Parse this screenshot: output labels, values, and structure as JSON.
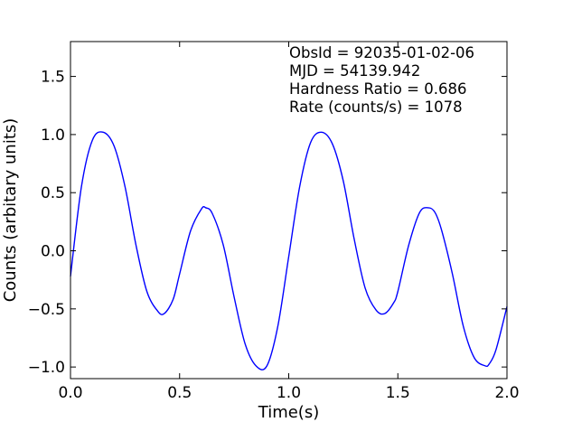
{
  "chart_data": {
    "type": "line",
    "xlabel": "Time(s)",
    "ylabel": "Counts (arbitary units)",
    "xlim": [
      0.0,
      2.0
    ],
    "ylim": [
      -1.1,
      1.8
    ],
    "x_ticks": [
      "0.0",
      "0.5",
      "1.0",
      "1.5",
      "2.0"
    ],
    "y_ticks": [
      "−1.0",
      "−0.5",
      "0.0",
      "0.5",
      "1.0",
      "1.5"
    ],
    "grid": false,
    "annotations": [
      "ObsId = 92035-01-02-06",
      "MJD = 54139.942",
      "Hardness Ratio = 0.686",
      "Rate (counts/s) = 1078"
    ],
    "series": [
      {
        "color": "#0000ff",
        "x": [
          0.0,
          0.05,
          0.1,
          0.15,
          0.2,
          0.25,
          0.3,
          0.35,
          0.4,
          0.43,
          0.47,
          0.5,
          0.55,
          0.6,
          0.62,
          0.65,
          0.7,
          0.75,
          0.8,
          0.85,
          0.9,
          0.95,
          1.0,
          1.05,
          1.1,
          1.15,
          1.2,
          1.25,
          1.3,
          1.35,
          1.4,
          1.44,
          1.48,
          1.5,
          1.55,
          1.6,
          1.64,
          1.67,
          1.7,
          1.75,
          1.8,
          1.85,
          1.9,
          1.92,
          1.95,
          2.0
        ],
        "y": [
          -0.22,
          0.55,
          0.95,
          1.02,
          0.9,
          0.55,
          0.05,
          -0.35,
          -0.52,
          -0.54,
          -0.42,
          -0.2,
          0.17,
          0.36,
          0.37,
          0.32,
          0.05,
          -0.4,
          -0.8,
          -0.99,
          -0.99,
          -0.65,
          -0.05,
          0.55,
          0.93,
          1.02,
          0.92,
          0.6,
          0.1,
          -0.32,
          -0.51,
          -0.54,
          -0.45,
          -0.35,
          0.05,
          0.33,
          0.37,
          0.33,
          0.18,
          -0.2,
          -0.65,
          -0.92,
          -0.99,
          -0.97,
          -0.85,
          -0.48
        ]
      }
    ]
  }
}
